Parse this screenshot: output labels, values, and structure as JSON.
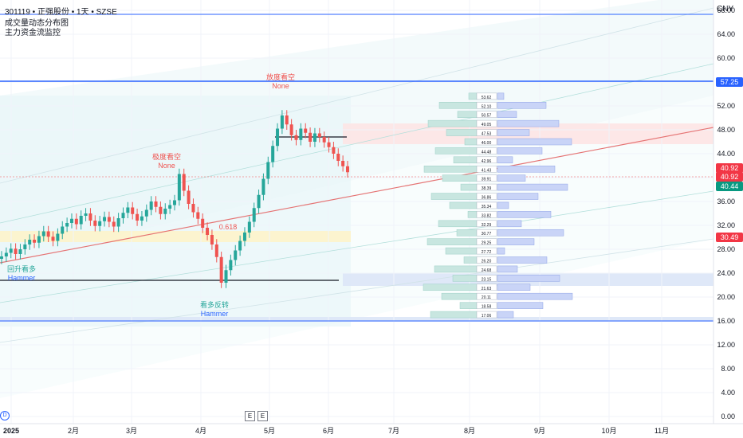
{
  "header": {
    "symbol_line": "301119 • 正强股份 • 1天 • SZSE",
    "indicator_1": "成交量动态分布图",
    "indicator_2": "主力资金流监控"
  },
  "currency": "CNY",
  "colors": {
    "up": "#26a69a",
    "down": "#ef5350",
    "blue_line": "#2962ff",
    "red_trend": "#e57373",
    "green_tag": "#089981",
    "red_tag": "#f23645"
  },
  "chart_data": {
    "type": "candlestick",
    "x_axis": {
      "ticks": [
        "2025",
        "2月",
        "3月",
        "4月",
        "5月",
        "6月",
        "7月",
        "8月",
        "9月",
        "10月",
        "11月"
      ]
    },
    "y_axis": {
      "ticks": [
        "0.00",
        "4.00",
        "8.00",
        "12.00",
        "16.00",
        "20.00",
        "24.00",
        "28.00",
        "32.00",
        "36.00",
        "40.00",
        "44.00",
        "48.00",
        "52.00",
        "56.00",
        "60.00",
        "64.00",
        "68.00"
      ],
      "range": [
        0,
        68
      ]
    },
    "price_tags": [
      {
        "value": "57.25",
        "color": "#2962ff"
      },
      {
        "value": "40.92",
        "color": "#f23645"
      },
      {
        "value": "40.92",
        "color": "#f23645"
      },
      {
        "value": "40.44",
        "color": "#089981"
      },
      {
        "value": "30.49",
        "color": "#f23645"
      }
    ],
    "annotations": [
      {
        "text": "放度看空",
        "sub": "None",
        "color": "#ef5350"
      },
      {
        "text": "极度看空",
        "sub": "None",
        "color": "#ef5350"
      },
      {
        "text": "回升看多",
        "sub": "Hammer",
        "color": "#26a69a"
      },
      {
        "text": "看多反转",
        "sub": "Hammer",
        "color": "#26a69a"
      },
      {
        "text": "0.618",
        "color": "#ef5350"
      }
    ],
    "volume_profile_levels": [
      "53.62",
      "52.10",
      "50.57",
      "49.05",
      "47.53",
      "46.00",
      "44.48",
      "42.96",
      "41.43",
      "39.91",
      "38.39",
      "36.86",
      "35.34",
      "33.82",
      "32.29",
      "30.77",
      "29.25",
      "27.72",
      "26.20",
      "24.68",
      "23.15",
      "21.63",
      "20.11",
      "18.58",
      "17.06"
    ],
    "series": [
      {
        "name": "close",
        "values": [
          26.8,
          27.4,
          28.1,
          27.2,
          28.0,
          28.8,
          29.6,
          29.1,
          30.2,
          31.0,
          30.1,
          29.4,
          30.6,
          31.8,
          32.4,
          33.1,
          32.2,
          33.6,
          34.0,
          32.8,
          31.9,
          32.7,
          33.4,
          32.6,
          31.8,
          33.2,
          34.1,
          35.0,
          33.9,
          32.8,
          33.5,
          34.6,
          36.0,
          35.1,
          33.9,
          34.8,
          35.4,
          36.2,
          40.6,
          37.8,
          35.6,
          34.2,
          33.1,
          31.6,
          30.4,
          28.8,
          26.7,
          22.4,
          24.5,
          26.2,
          27.8,
          29.4,
          30.8,
          32.6,
          34.9,
          37.1,
          39.8,
          42.6,
          45.3,
          48.2,
          50.4,
          48.9,
          47.1,
          46.3,
          48.2,
          47.5,
          46.0,
          47.4,
          46.8,
          45.9,
          45.1,
          44.0,
          42.8,
          41.9,
          40.9
        ]
      }
    ]
  }
}
